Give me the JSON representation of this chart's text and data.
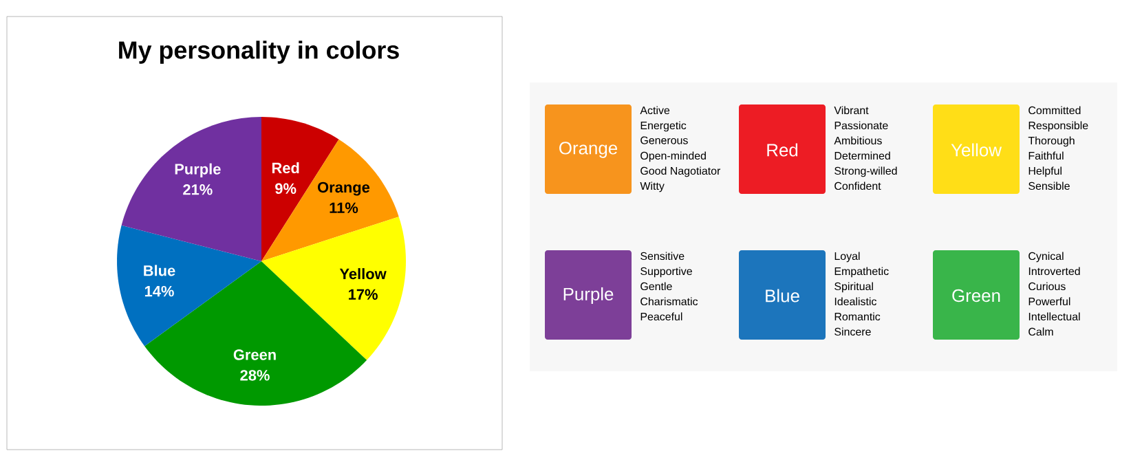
{
  "chart_data": [
    {
      "type": "pie",
      "title": "My personality in colors",
      "categories": [
        "Red",
        "Orange",
        "Yellow",
        "Green",
        "Blue",
        "Purple"
      ],
      "values": [
        9,
        11,
        17,
        28,
        14,
        21
      ],
      "value_labels": [
        "9%",
        "11%",
        "17%",
        "28%",
        "14%",
        "21%"
      ],
      "colors": [
        "#cc0000",
        "#ff9900",
        "#ffff00",
        "#009900",
        "#0070c0",
        "#7030a0"
      ]
    },
    {
      "type": "other",
      "title": "Orange",
      "colors": [
        "#f7941d"
      ],
      "annotations": [
        "Active",
        "Energetic",
        "Generous",
        "Open-minded",
        "Good Nagotiator",
        "Witty"
      ]
    },
    {
      "type": "other",
      "title": "Red",
      "colors": [
        "#ed1c24"
      ],
      "annotations": [
        "Vibrant",
        "Passionate",
        "Ambitious",
        "Determined",
        "Strong-willed",
        "Confident"
      ]
    },
    {
      "type": "other",
      "title": "Yellow",
      "colors": [
        "#ffde17"
      ],
      "annotations": [
        "Committed",
        "Responsible",
        "Thorough",
        "Faithful",
        "Helpful",
        "Sensible"
      ]
    },
    {
      "type": "other",
      "title": "Purple",
      "colors": [
        "#7d3f98"
      ],
      "annotations": [
        "Sensitive",
        "Supportive",
        "Gentle",
        "Charismatic",
        "Peaceful"
      ]
    },
    {
      "type": "other",
      "title": "Blue",
      "colors": [
        "#1c75bc"
      ],
      "annotations": [
        "Loyal",
        "Empathetic",
        "Spiritual",
        "Idealistic",
        "Romantic",
        "Sincere"
      ]
    },
    {
      "type": "other",
      "title": "Green",
      "colors": [
        "#39b54a"
      ],
      "annotations": [
        "Cynical",
        "Introverted",
        "Curious",
        "Powerful",
        "Intellectual",
        "Calm"
      ]
    }
  ]
}
